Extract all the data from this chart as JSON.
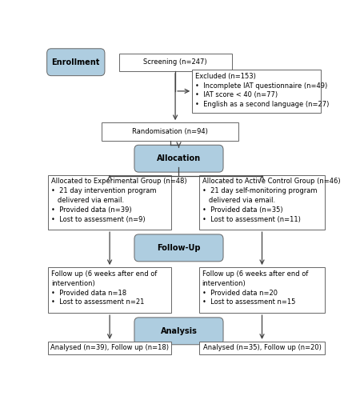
{
  "bg_color": "#ffffff",
  "box_border_color": "#666666",
  "box_fill_plain": "#ffffff",
  "box_fill_blue": "#aecde0",
  "arrow_color": "#444444",
  "font_size": 6.0,
  "bold_font_size": 7.0,
  "boxes": {
    "enrollment": [
      0.02,
      0.925,
      0.175,
      0.058,
      "Enrollment",
      true,
      true
    ],
    "screening": [
      0.26,
      0.925,
      0.4,
      0.058,
      "Screening (n=247)",
      false,
      false
    ],
    "excluded": [
      0.52,
      0.79,
      0.455,
      0.14,
      "Excluded (n=153)\n•  Incomplete IAT questionnaire (n=49)\n•  IAT score < 40 (n=77)\n•  English as a second language (n=27)",
      false,
      false
    ],
    "randomisation": [
      0.2,
      0.7,
      0.485,
      0.058,
      "Randomisation (n=94)",
      false,
      false
    ],
    "allocation": [
      0.33,
      0.612,
      0.285,
      0.058,
      "Allocation",
      true,
      true
    ],
    "exp_group": [
      0.01,
      0.41,
      0.435,
      0.178,
      "Allocated to Experimental Group (n=48)\n•  21 day intervention program\n   delivered via email.\n•  Provided data (n=39)\n•  Lost to assessment (n=9)",
      false,
      false
    ],
    "ctrl_group": [
      0.545,
      0.41,
      0.445,
      0.178,
      "Allocated to Active Control Group (n=46)\n•  21 day self-monitoring program\n   delivered via email.\n•  Provided data (n=35)\n•  Lost to assessment (n=11)",
      false,
      false
    ],
    "followup": [
      0.33,
      0.322,
      0.285,
      0.058,
      "Follow-Up",
      true,
      true
    ],
    "exp_followup": [
      0.01,
      0.14,
      0.435,
      0.148,
      "Follow up (6 weeks after end of\nintervention)\n•  Provided data n=18\n•  Lost to assessment n=21",
      false,
      false
    ],
    "ctrl_followup": [
      0.545,
      0.14,
      0.445,
      0.148,
      "Follow up (6 weeks after end of\nintervention)\n•  Provided data n=20\n•  Lost to assessment n=15",
      false,
      false
    ],
    "analysis": [
      0.33,
      0.052,
      0.285,
      0.058,
      "Analysis",
      true,
      true
    ],
    "exp_analysis": [
      0.01,
      0.005,
      0.435,
      0.042,
      "Analysed (n=39), Follow up (n=18)",
      false,
      false
    ],
    "ctrl_analysis": [
      0.545,
      0.005,
      0.445,
      0.042,
      "Analysed (n=35), Follow up (n=20)",
      false,
      false
    ]
  }
}
